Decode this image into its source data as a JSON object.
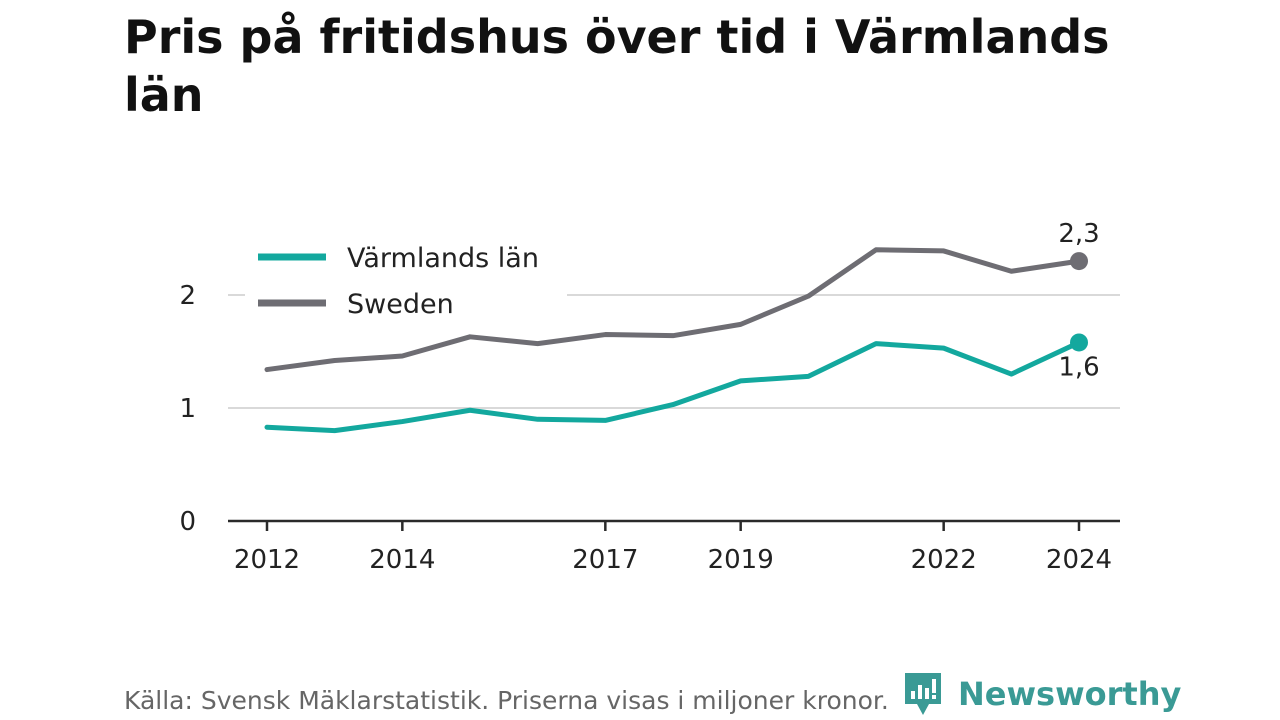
{
  "title": "Pris på fritidshus över tid i Värmlands län",
  "footer": {
    "source": "Källa: Svensk Mäklarstatistik. Priserna visas i miljoner kronor.",
    "brand": "Newsworthy"
  },
  "colors": {
    "varmland": "#13a89e",
    "sweden": "#6e6d73",
    "axis": "#2a2a2a",
    "grid": "#d9d9d9",
    "brand": "#3a9a95"
  },
  "chart_data": {
    "type": "line",
    "title": "Pris på fritidshus över tid i Värmlands län",
    "x": [
      2012,
      2013,
      2014,
      2015,
      2016,
      2017,
      2018,
      2019,
      2020,
      2021,
      2022,
      2023,
      2024
    ],
    "xticks": [
      "2012",
      "2014",
      "2017",
      "2019",
      "2022",
      "2024"
    ],
    "yticks": [
      "0",
      "1",
      "2"
    ],
    "ylim": [
      0,
      2.4
    ],
    "grid": true,
    "legend": "top-left",
    "series": [
      {
        "name": "Värmlands län",
        "color": "#13a89e",
        "values": [
          0.83,
          0.8,
          0.88,
          0.98,
          0.9,
          0.89,
          1.03,
          1.24,
          1.28,
          1.57,
          1.53,
          1.3,
          1.58
        ],
        "end_label": "1,6"
      },
      {
        "name": "Sweden",
        "color": "#6e6d73",
        "values": [
          1.34,
          1.42,
          1.46,
          1.63,
          1.57,
          1.65,
          1.64,
          1.74,
          1.99,
          2.4,
          2.39,
          2.21,
          2.3
        ],
        "end_label": "2,3"
      }
    ]
  }
}
